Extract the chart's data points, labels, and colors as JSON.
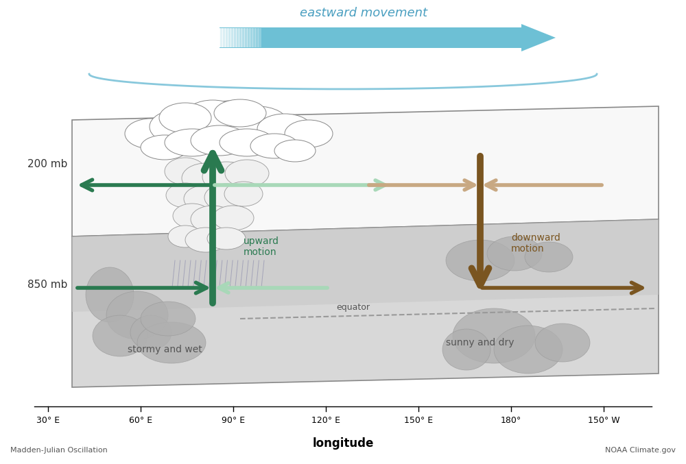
{
  "eastward_label": "eastward movement",
  "xlabel": "longitude",
  "xtick_labels": [
    "30° E",
    "60° E",
    "90° E",
    "120° E",
    "150° E",
    "180°",
    "150° W"
  ],
  "pressure_200mb": "200 mb",
  "pressure_850mb": "850 mb",
  "upward_label": "upward\nmotion",
  "downward_label": "downward\nmotion",
  "stormy_label": "stormy and wet",
  "sunny_label": "sunny and dry",
  "equator_label": "equator",
  "footer_left": "Madden-Julian Oscillation",
  "footer_right": "NOAA Climate.gov",
  "green_dark": "#2a7a50",
  "green_light": "#a8d8b8",
  "brown_dark": "#7a5520",
  "brown_light": "#c8a882",
  "blue_arrow": "#6dc0d5",
  "blue_light": "#c8e8f5",
  "bracket_color": "#88c8dc",
  "background_color": "#ffffff",
  "upper_plane_face": "#f8f8f8",
  "lower_plane_face": "#e0e0e0",
  "plane_edge": "#888888"
}
